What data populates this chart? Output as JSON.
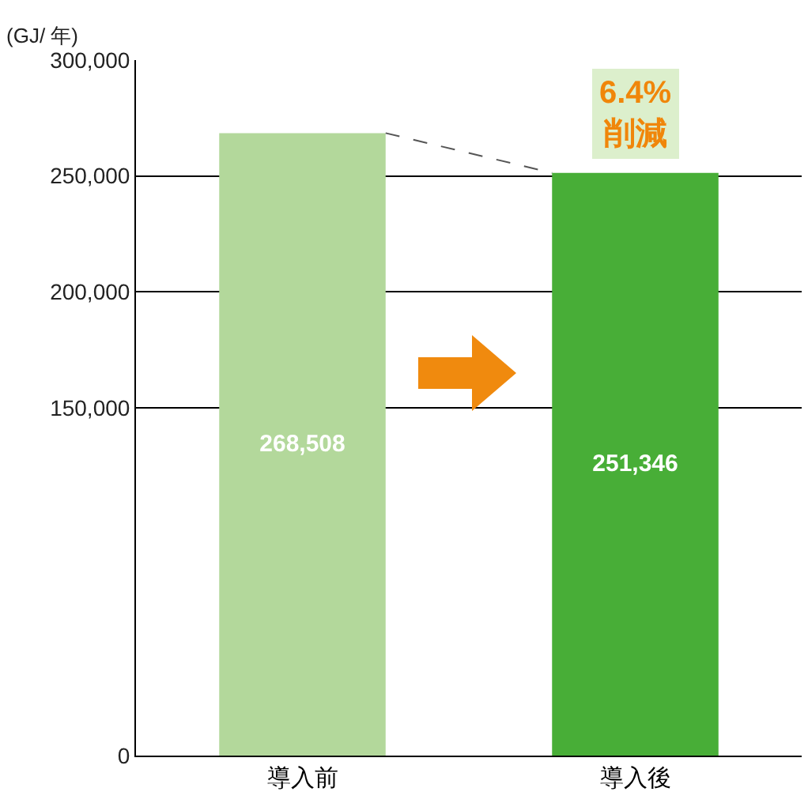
{
  "chart_data": {
    "type": "bar",
    "ylabel": "(GJ/ 年)",
    "categories": [
      "導入前",
      "導入後"
    ],
    "values": [
      268508,
      251346
    ],
    "colors": [
      "#b3d89b",
      "#48ae37"
    ],
    "value_labels": [
      "268,508",
      "251,346"
    ],
    "ylim": [
      0,
      300000
    ],
    "yticks": [
      0,
      {
        "value": 150000,
        "label": "150,000"
      },
      {
        "value": 200000,
        "label": "200,000"
      },
      {
        "value": 250000,
        "label": "250,000"
      },
      {
        "value": 300000,
        "label": "300,000"
      }
    ],
    "grid": "y",
    "annotations": [
      {
        "text": "6.4%\n削減",
        "x": "導入後",
        "y": 251346
      }
    ]
  }
}
